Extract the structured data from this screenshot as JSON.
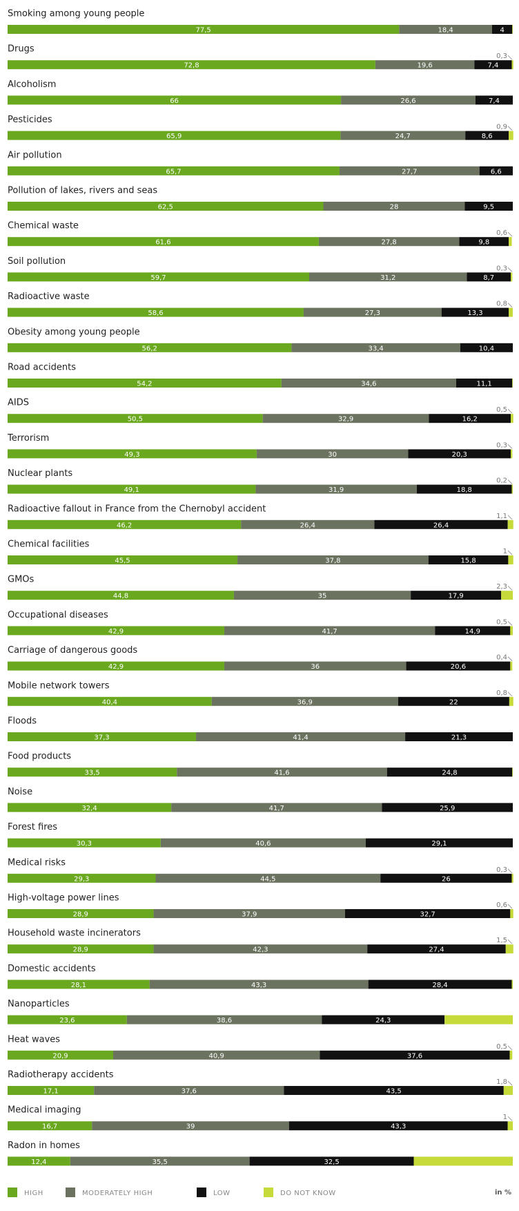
{
  "chart_data": {
    "type": "stacked-barh",
    "unit": "in %",
    "xlim": [
      0,
      100
    ],
    "categories": [
      "Smoking among young people",
      "Drugs",
      "Alcoholism",
      "Pesticides",
      "Air pollution",
      "Pollution of lakes, rivers and seas",
      "Chemical waste",
      "Soil pollution",
      "Radioactive waste",
      "Obesity among young people",
      "Road accidents",
      "AIDS",
      "Terrorism",
      "Nuclear plants",
      "Radioactive fallout in France from the Chernobyl accident",
      "Chemical facilities",
      "GMOs",
      "Occupational diseases",
      "Carriage of dangerous goods",
      "Mobile network towers",
      "Floods",
      "Food products",
      "Noise",
      "Forest fires",
      "Medical risks",
      "High-voltage power lines",
      "Household waste incinerators",
      "Domestic accidents",
      "Nanoparticles",
      "Heat waves",
      "Radiotherapy accidents",
      "Medical imaging",
      "Radon in homes"
    ],
    "series": [
      {
        "name": "HIGH",
        "color": "#6aa81f",
        "values": [
          77.5,
          72.8,
          66,
          65.9,
          65.7,
          62.5,
          61.6,
          59.7,
          58.6,
          56.2,
          54.2,
          50.5,
          49.3,
          49.1,
          46.2,
          45.5,
          44.8,
          42.9,
          42.9,
          40.4,
          37.3,
          33.5,
          32.4,
          30.3,
          29.3,
          28.9,
          28.9,
          28.1,
          23.6,
          20.9,
          17.1,
          16.7,
          12.4
        ],
        "value_labels": [
          "77,5",
          "72,8",
          "66",
          "65,9",
          "65,7",
          "62,5",
          "61,6",
          "59,7",
          "58,6",
          "56,2",
          "54,2",
          "50,5",
          "49,3",
          "49,1",
          "46,2",
          "45,5",
          "44,8",
          "42,9",
          "42,9",
          "40,4",
          "37,3",
          "33,5",
          "32,4",
          "30,3",
          "29,3",
          "28,9",
          "28,9",
          "28,1",
          "23,6",
          "20,9",
          "17,1",
          "16,7",
          "12,4"
        ]
      },
      {
        "name": "MODERATELY HIGH",
        "color": "#6b7360",
        "values": [
          18.4,
          19.6,
          26.6,
          24.7,
          27.7,
          28,
          27.8,
          31.2,
          27.3,
          33.4,
          34.6,
          32.9,
          30,
          31.9,
          26.4,
          37.8,
          35,
          41.7,
          36,
          36.9,
          41.4,
          41.6,
          41.7,
          40.6,
          44.5,
          37.9,
          42.3,
          43.3,
          38.6,
          40.9,
          37.6,
          39,
          35.5
        ],
        "value_labels": [
          "18,4",
          "19,6",
          "26,6",
          "24,7",
          "27,7",
          "28",
          "27,8",
          "31,2",
          "27,3",
          "33,4",
          "34,6",
          "32,9",
          "30",
          "31,9",
          "26,4",
          "37,8",
          "35",
          "41,7",
          "36",
          "36,9",
          "41,4",
          "41,6",
          "41,7",
          "40,6",
          "44,5",
          "37,9",
          "42,3",
          "43,3",
          "38,6",
          "40,9",
          "37,6",
          "39",
          "35,5"
        ]
      },
      {
        "name": "LOW",
        "color": "#111111",
        "values": [
          4,
          7.4,
          7.4,
          8.6,
          6.6,
          9.5,
          9.8,
          8.7,
          13.3,
          10.4,
          11.1,
          16.2,
          20.3,
          18.8,
          26.4,
          15.8,
          17.9,
          14.9,
          20.6,
          22,
          21.3,
          24.8,
          25.9,
          29.1,
          26,
          32.7,
          27.4,
          28.4,
          24.3,
          37.6,
          43.5,
          43.3,
          32.5
        ],
        "value_labels": [
          "4",
          "7,4",
          "7,4",
          "8,6",
          "6,6",
          "9,5",
          "9,8",
          "8,7",
          "13,3",
          "10,4",
          "11,1",
          "16,2",
          "20,3",
          "18,8",
          "26,4",
          "15,8",
          "17,9",
          "14,9",
          "20,6",
          "22",
          "21,3",
          "24,8",
          "25,9",
          "29,1",
          "26",
          "32,7",
          "27,4",
          "28,4",
          "24,3",
          "37,6",
          "43,5",
          "43,3",
          "32,5"
        ]
      },
      {
        "name": "DO NOT KNOW",
        "color": "#c6da3a",
        "values": [
          0.1,
          0.3,
          0,
          0.9,
          0,
          0,
          0.6,
          0.3,
          0.8,
          0,
          0.1,
          0.5,
          0.3,
          0.2,
          1.1,
          1,
          2.3,
          0.5,
          0.4,
          0.8,
          0,
          0.1,
          0,
          0,
          0.3,
          0.6,
          1.5,
          0.2,
          13.5,
          0.5,
          1.8,
          1,
          19.6
        ],
        "value_labels": [
          null,
          "0,3",
          null,
          "0,9",
          null,
          null,
          "0,6",
          "0,3",
          "0,8",
          null,
          null,
          "0,5",
          "0,3",
          "0,2",
          "1,1",
          "1",
          "2,3",
          "0,5",
          "0,4",
          "0,8",
          null,
          null,
          null,
          null,
          "0,3",
          "0,6",
          "1,5",
          null,
          null,
          "0,5",
          "1,8",
          "1",
          null
        ]
      }
    ]
  }
}
